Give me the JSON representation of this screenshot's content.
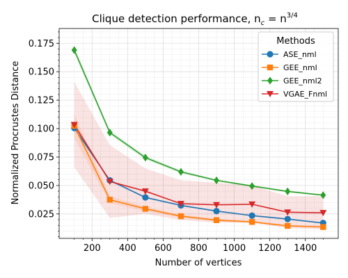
{
  "chart_data": {
    "type": "line",
    "title": "Clique detection performance, n",
    "title_sub": "c",
    "title_eq": " = n",
    "title_sup": "3/4",
    "xlabel": "Number of vertices",
    "ylabel": "Normalized Procrustes Distance",
    "x": [
      100,
      300,
      500,
      700,
      900,
      1100,
      1300,
      1500
    ],
    "xlim": [
      15,
      1585
    ],
    "ylim": [
      0.0035,
      0.188
    ],
    "xticks": [
      200,
      400,
      600,
      800,
      1000,
      1200,
      1400
    ],
    "xtick_labels": [
      "200",
      "400",
      "600",
      "800",
      "1000",
      "1200",
      "1400"
    ],
    "yticks": [
      0.025,
      0.05,
      0.075,
      0.1,
      0.125,
      0.15,
      0.175
    ],
    "ytick_labels": [
      "0.025",
      "0.050",
      "0.075",
      "0.100",
      "0.125",
      "0.150",
      "0.175"
    ],
    "grid": true,
    "legend": {
      "title": "Methods",
      "placement": "top-right"
    },
    "series": [
      {
        "name": "ASE_nml",
        "color": "#1f77b4",
        "marker": "circle",
        "values": [
          0.1005,
          0.0545,
          0.0395,
          0.0325,
          0.0275,
          0.0235,
          0.0205,
          0.017
        ],
        "band_low": [
          0.099,
          0.0535,
          0.0388,
          0.0318,
          0.0268,
          0.0228,
          0.0198,
          0.0164
        ],
        "band_high": [
          0.102,
          0.0555,
          0.0402,
          0.0332,
          0.0282,
          0.0242,
          0.0212,
          0.0176
        ]
      },
      {
        "name": "GEE_nml",
        "color": "#ff7f0e",
        "marker": "square",
        "values": [
          0.1025,
          0.0375,
          0.0295,
          0.023,
          0.0195,
          0.018,
          0.0145,
          0.0135
        ],
        "band_low": [
          0.092,
          0.0345,
          0.0275,
          0.0215,
          0.0182,
          0.0168,
          0.0135,
          0.0126
        ],
        "band_high": [
          0.113,
          0.0405,
          0.0315,
          0.0245,
          0.0208,
          0.0192,
          0.0155,
          0.0144
        ]
      },
      {
        "name": "GEE_nml2",
        "color": "#2ca02c",
        "marker": "diamond",
        "values": [
          0.169,
          0.0965,
          0.0745,
          0.062,
          0.0545,
          0.0495,
          0.0448,
          0.0415
        ],
        "band_low": [
          0.166,
          0.0945,
          0.0728,
          0.0607,
          0.0535,
          0.0486,
          0.044,
          0.0408
        ],
        "band_high": [
          0.172,
          0.0985,
          0.0762,
          0.0633,
          0.0555,
          0.0504,
          0.0456,
          0.0422
        ]
      },
      {
        "name": "VGAE_Fnml",
        "color": "#d62728",
        "marker": "triangle-down",
        "values": [
          0.1035,
          0.0535,
          0.045,
          0.034,
          0.033,
          0.0335,
          0.0265,
          0.026
        ],
        "band_low": [
          0.066,
          0.0215,
          0.025,
          0.0195,
          0.0175,
          0.0175,
          0.0125,
          0.0115
        ],
        "band_high": [
          0.141,
          0.0855,
          0.065,
          0.0545,
          0.0525,
          0.05,
          0.0405,
          0.0405
        ]
      }
    ]
  }
}
